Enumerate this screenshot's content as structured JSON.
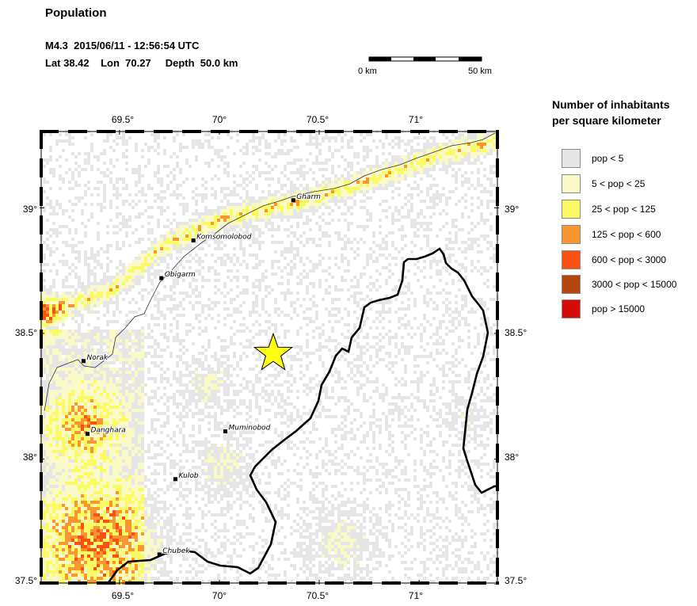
{
  "header": {
    "title": "Population",
    "event_line": "M4.3  2015/06/11 - 12:56:54 UTC",
    "location_line": "Lat 38.42    Lon  70.27     Depth  50.0 km"
  },
  "scale_bar": {
    "left_label": "0 km",
    "right_label": "50 km"
  },
  "legend": {
    "title_line1": "Number of inhabitants",
    "title_line2": "per square kilometer",
    "items": [
      {
        "label": "pop < 5",
        "color": "#e6e6e6"
      },
      {
        "label": "5 < pop < 25",
        "color": "#fafac8"
      },
      {
        "label": "25 < pop < 125",
        "color": "#fafa64"
      },
      {
        "label": "125 < pop < 600",
        "color": "#fa9632"
      },
      {
        "label": "600 < pop < 3000",
        "color": "#fa5014"
      },
      {
        "label": "3000 < pop < 15000",
        "color": "#b4460f"
      },
      {
        "label": "pop > 15000",
        "color": "#d70a0a"
      }
    ]
  },
  "map": {
    "lon_range": [
      69.1,
      71.4
    ],
    "lat_range": [
      37.5,
      39.31
    ],
    "lon_ticks": [
      "69.5°",
      "70°",
      "70.5°",
      "71°"
    ],
    "lat_ticks": [
      "39°",
      "38.5°",
      "38°",
      "37.5°"
    ],
    "epicenter": {
      "lon": 70.27,
      "lat": 38.42
    },
    "cities": [
      {
        "name": "Gharm",
        "lon": 70.37,
        "lat": 39.03
      },
      {
        "name": "Komsomolobod",
        "lon": 69.87,
        "lat": 38.87
      },
      {
        "name": "Obigarm",
        "lon": 69.71,
        "lat": 38.72
      },
      {
        "name": "Norak",
        "lon": 69.32,
        "lat": 38.39
      },
      {
        "name": "Danghara",
        "lon": 69.34,
        "lat": 38.1
      },
      {
        "name": "Muminobod",
        "lon": 70.03,
        "lat": 38.11
      },
      {
        "name": "Kulob",
        "lon": 69.78,
        "lat": 37.92
      },
      {
        "name": "Chubek",
        "lon": 69.7,
        "lat": 37.62
      }
    ]
  }
}
